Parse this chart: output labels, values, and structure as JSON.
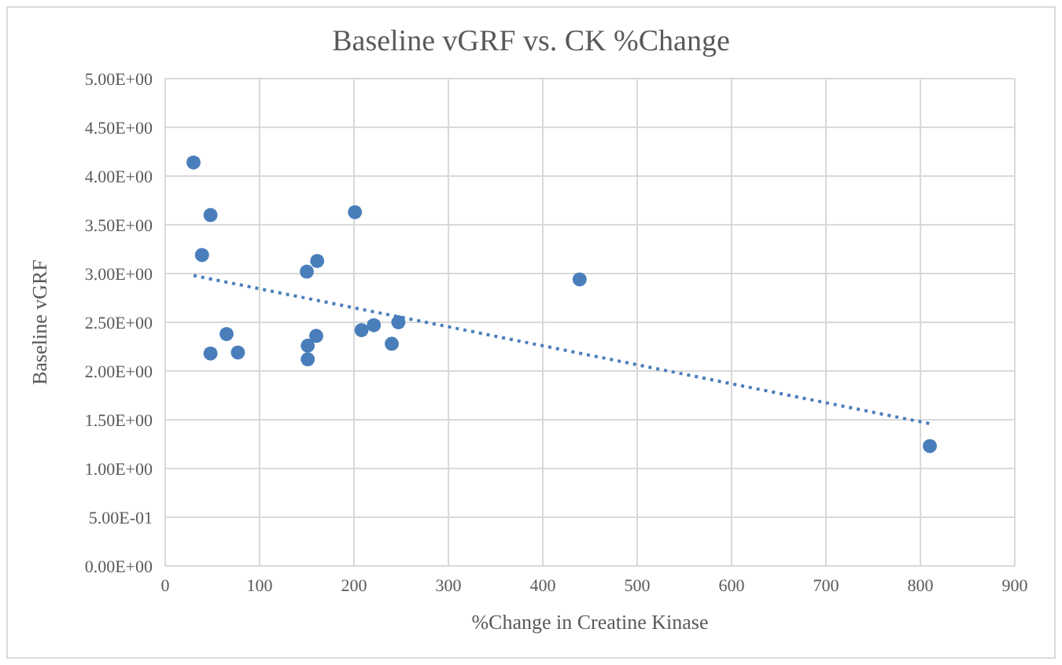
{
  "chart_data": {
    "type": "scatter",
    "title": "Baseline vGRF vs. CK %Change",
    "xlabel": "%Change in Creatine Kinase",
    "ylabel": "Baseline vGRF",
    "series": [
      {
        "color": "#4a7ebb",
        "x": [
          30,
          48,
          39,
          48,
          65,
          77,
          150,
          161,
          201,
          151,
          151,
          160,
          208,
          221,
          247,
          240,
          439,
          810
        ],
        "values": [
          4.14,
          3.6,
          3.19,
          2.18,
          2.38,
          2.19,
          3.02,
          3.13,
          3.63,
          2.12,
          2.26,
          2.36,
          2.42,
          2.47,
          2.5,
          2.28,
          2.94,
          1.23
        ]
      },
      {
        "type": "line",
        "color": "#4a7ebb",
        "line_style": "dotted",
        "marker": "none",
        "x": [
          30,
          810
        ],
        "values": [
          2.98,
          1.46
        ]
      }
    ],
    "xlim": [
      0,
      900
    ],
    "xticks": [
      0,
      100,
      200,
      300,
      400,
      500,
      600,
      700,
      800,
      900
    ],
    "ylim": [
      0,
      5
    ],
    "yticks": [
      {
        "value": 0,
        "label": "0.00E+00"
      },
      {
        "value": 0.5,
        "label": "5.00E-01"
      },
      {
        "value": 1,
        "label": "1.00E+00"
      },
      {
        "value": 1.5,
        "label": "1.50E+00"
      },
      {
        "value": 2,
        "label": "2.00E+00"
      },
      {
        "value": 2.5,
        "label": "2.50E+00"
      },
      {
        "value": 3,
        "label": "3.00E+00"
      },
      {
        "value": 3.5,
        "label": "3.50E+00"
      },
      {
        "value": 4,
        "label": "4.00E+00"
      },
      {
        "value": 4.5,
        "label": "4.50E+00"
      },
      {
        "value": 5,
        "label": "5.00E+00"
      }
    ],
    "grid": true,
    "marker": "circle"
  }
}
